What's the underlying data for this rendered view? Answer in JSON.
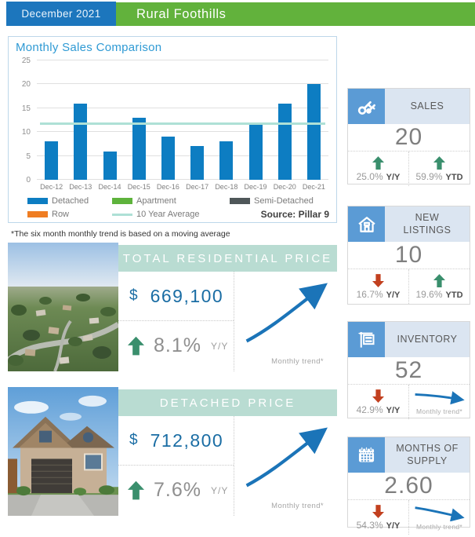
{
  "header": {
    "period": "December 2021",
    "community": "Rural Foothills"
  },
  "chart": {
    "title": "Monthly Sales Comparison",
    "source": "Source: Pillar 9",
    "legend": [
      {
        "label": "Detached",
        "color": "#0d7dc2"
      },
      {
        "label": "Apartment",
        "color": "#5eb33c"
      },
      {
        "label": "Semi-Detached",
        "color": "#4f5759"
      },
      {
        "label": "Row",
        "color": "#ef7d22"
      },
      {
        "label": "10 Year Average",
        "color": "#aee0d6"
      }
    ]
  },
  "chart_data": {
    "type": "bar",
    "title": "Monthly Sales Comparison",
    "categories": [
      "Dec-12",
      "Dec-13",
      "Dec-14",
      "Dec-15",
      "Dec-16",
      "Dec-17",
      "Dec-18",
      "Dec-19",
      "Dec-20",
      "Dec-21"
    ],
    "series": [
      {
        "name": "Detached",
        "values": [
          8,
          16,
          6,
          13,
          9,
          7,
          8,
          12,
          16,
          20
        ]
      }
    ],
    "reference_line": {
      "name": "10 Year Average",
      "value": 11.5
    },
    "ylim": [
      0,
      25
    ],
    "yticks": [
      0,
      5,
      10,
      15,
      20,
      25
    ],
    "grid": true,
    "legend_position": "bottom"
  },
  "footnote": "*The six month monthly trend is based on a moving average",
  "price_cards": [
    {
      "title": "TOTAL RESIDENTIAL PRICE",
      "currency_symbol": "$",
      "value": "669,100",
      "yoy_direction": "up",
      "yoy_change": "8.1%",
      "yoy_label": "Y/Y",
      "trend_caption": "Monthly trend*",
      "trend_direction": "up",
      "photo": "aerial-neighborhood"
    },
    {
      "title": "DETACHED PRICE",
      "currency_symbol": "$",
      "value": "712,800",
      "yoy_direction": "up",
      "yoy_change": "7.6%",
      "yoy_label": "Y/Y",
      "trend_caption": "Monthly trend*",
      "trend_direction": "up",
      "photo": "detached-house"
    }
  ],
  "stat_cards": [
    {
      "title": "SALES",
      "icon": "keys-icon",
      "value": "20",
      "yoy": {
        "direction": "up",
        "value": "25.0%",
        "label": "Y/Y"
      },
      "ytd": {
        "direction": "up",
        "value": "59.9%",
        "label": "YTD"
      }
    },
    {
      "title": "NEW LISTINGS",
      "icon": "house-icon",
      "value": "10",
      "yoy": {
        "direction": "down",
        "value": "16.7%",
        "label": "Y/Y"
      },
      "ytd": {
        "direction": "up",
        "value": "19.6%",
        "label": "YTD"
      }
    },
    {
      "title": "INVENTORY",
      "icon": "for-sale-sign-icon",
      "value": "52",
      "yoy": {
        "direction": "down",
        "value": "42.9%",
        "label": "Y/Y"
      },
      "trend_caption": "Monthly trend*",
      "trend_direction": "down"
    },
    {
      "title": "MONTHS OF SUPPLY",
      "icon": "calendar-icon",
      "value": "2.60",
      "yoy": {
        "direction": "down",
        "value": "54.3%",
        "label": "Y/Y"
      },
      "trend_caption": "Monthly trend*",
      "trend_direction": "down"
    }
  ],
  "colors": {
    "header_blue": "#1c76bd",
    "header_green": "#62b23c",
    "chart_title_blue": "#2f9ad4",
    "bar_blue": "#0d7dc2",
    "average_line_teal": "#aee0d6",
    "banner_teal": "#b9dcd2",
    "price_blue": "#1a6da4",
    "icon_square_blue": "#5b9bd5",
    "card_label_bg": "#dbe5f1",
    "up_green": "#3a8f6d",
    "down_red": "#c2401f",
    "trend_blue": "#1b74b8",
    "row_orange": "#ef7d22",
    "apartment_green": "#5eb33c",
    "semi_detached_gray": "#4f5759"
  }
}
